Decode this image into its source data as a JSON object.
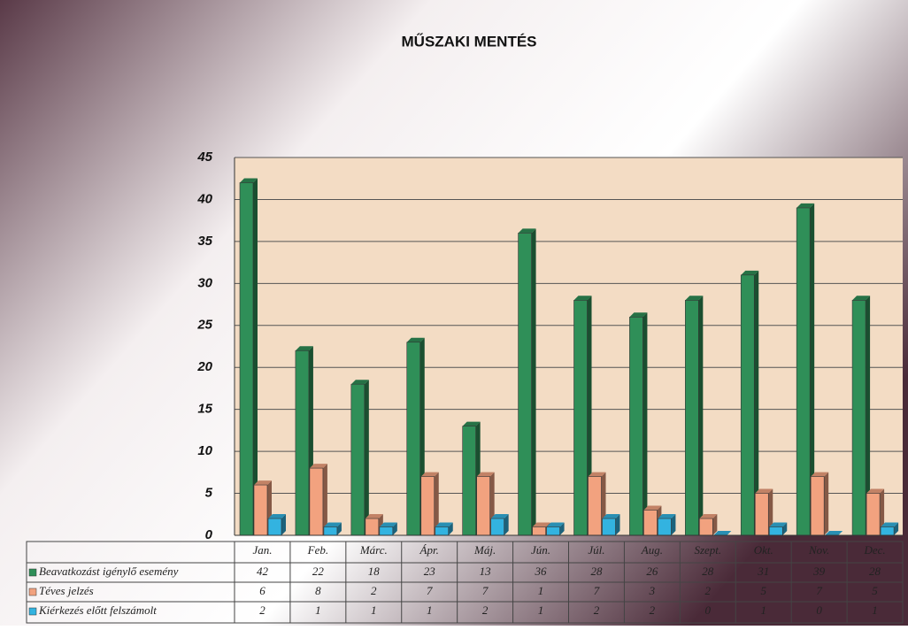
{
  "chart_data": {
    "type": "bar",
    "title": "MŰSZAKI MENTÉS",
    "categories": [
      "Jan.",
      "Feb.",
      "Márc.",
      "Ápr.",
      "Máj.",
      "Jún.",
      "Júl.",
      "Aug.",
      "Szept.",
      "Okt.",
      "Nov.",
      "Dec."
    ],
    "series": [
      {
        "name": "Beavatkozást igénylő esemény",
        "color": "#2f8f58",
        "values": [
          42,
          22,
          18,
          23,
          13,
          36,
          28,
          26,
          28,
          31,
          39,
          28
        ]
      },
      {
        "name": "Téves jelzés",
        "color": "#f2a27f",
        "values": [
          6,
          8,
          2,
          7,
          7,
          1,
          7,
          3,
          2,
          5,
          7,
          5
        ]
      },
      {
        "name": "Kiérkezés előtt felszámolt",
        "color": "#33b3e0",
        "values": [
          2,
          1,
          1,
          1,
          2,
          1,
          2,
          2,
          0,
          1,
          0,
          1
        ]
      }
    ],
    "ylim": [
      0,
      45
    ],
    "yticks": [
      0,
      5,
      10,
      15,
      20,
      25,
      30,
      35,
      40,
      45
    ],
    "grid": true
  }
}
